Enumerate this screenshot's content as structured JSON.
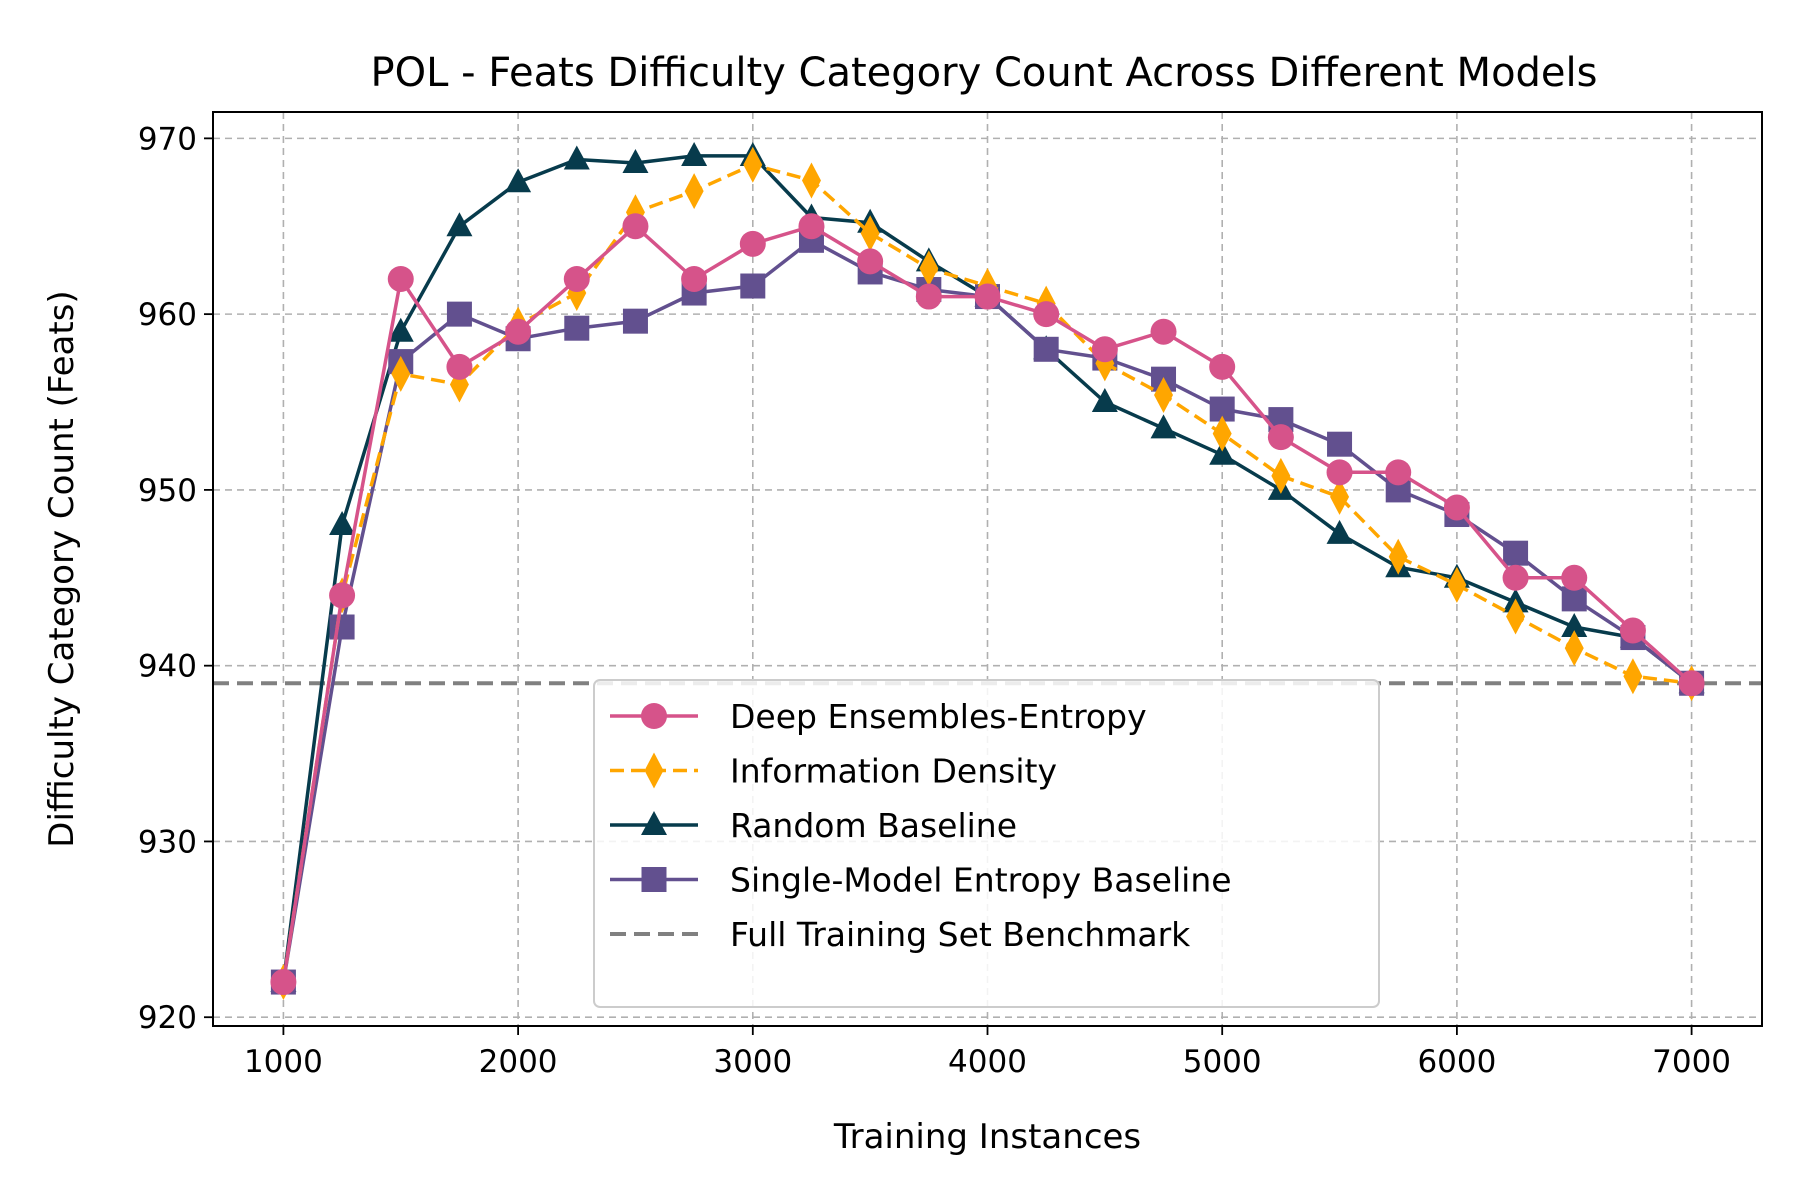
{
  "chart_data": {
    "type": "line",
    "title": "POL - Feats Difficulty Category Count Across Different Models",
    "xlabel": "Training Instances",
    "ylabel": "Difficulty Category Count (Feats)",
    "xlim": [
      700,
      7300
    ],
    "ylim": [
      919.5,
      971.5
    ],
    "xticks": [
      1000,
      2000,
      3000,
      4000,
      5000,
      6000,
      7000
    ],
    "yticks": [
      920,
      930,
      940,
      950,
      960,
      970
    ],
    "grid": true,
    "legend_position": "lower-center",
    "x": [
      1000,
      1250,
      1500,
      1750,
      2000,
      2250,
      2500,
      2750,
      3000,
      3250,
      3500,
      3750,
      4000,
      4250,
      4500,
      4750,
      5000,
      5250,
      5500,
      5750,
      6000,
      6250,
      6500,
      6750,
      7000
    ],
    "series": [
      {
        "name": "Random Baseline",
        "color": "#073b4c",
        "marker": "triangle",
        "dash": "solid",
        "values": [
          922,
          948,
          959,
          965,
          967.5,
          968.8,
          968.6,
          969,
          969,
          965.5,
          965.2,
          963,
          961,
          958,
          955,
          953.5,
          952,
          950,
          947.5,
          945.6,
          945,
          943.6,
          942.2,
          941.6,
          939
        ]
      },
      {
        "name": "Single-Model Entropy Baseline",
        "color": "#62508f",
        "marker": "square",
        "dash": "solid",
        "values": [
          922,
          942.2,
          957.3,
          960,
          958.6,
          959.2,
          959.6,
          961.2,
          961.6,
          964.2,
          962.4,
          961.4,
          961,
          958,
          957.5,
          956.3,
          954.6,
          954,
          952.6,
          950,
          948.6,
          946.4,
          943.8,
          941.6,
          939
        ]
      },
      {
        "name": "Information Density",
        "color": "#ffa600",
        "marker": "diamond",
        "dash": "dashed",
        "values": [
          922,
          944,
          956.6,
          956,
          959.4,
          961.2,
          965.8,
          967,
          968.5,
          967.6,
          964.6,
          962.6,
          961.6,
          960.6,
          957.2,
          955.4,
          953.2,
          950.8,
          949.6,
          946.2,
          944.6,
          942.8,
          941,
          939.4,
          939
        ]
      },
      {
        "name": "Deep Ensembles-Entropy",
        "color": "#d6538a",
        "marker": "circle",
        "dash": "solid",
        "values": [
          922,
          944,
          962,
          957,
          959,
          962,
          965,
          962,
          964,
          965,
          963,
          961,
          961,
          960,
          958,
          959,
          957,
          953,
          951,
          951,
          949,
          945,
          945,
          942,
          939
        ]
      }
    ],
    "legend_order": [
      "Deep Ensembles-Entropy",
      "Information Density",
      "Random Baseline",
      "Single-Model Entropy Baseline",
      "Full Training Set Benchmark"
    ],
    "benchmark": {
      "name": "Full Training Set Benchmark",
      "value": 939,
      "color": "#808080",
      "dash": "dashed"
    }
  }
}
